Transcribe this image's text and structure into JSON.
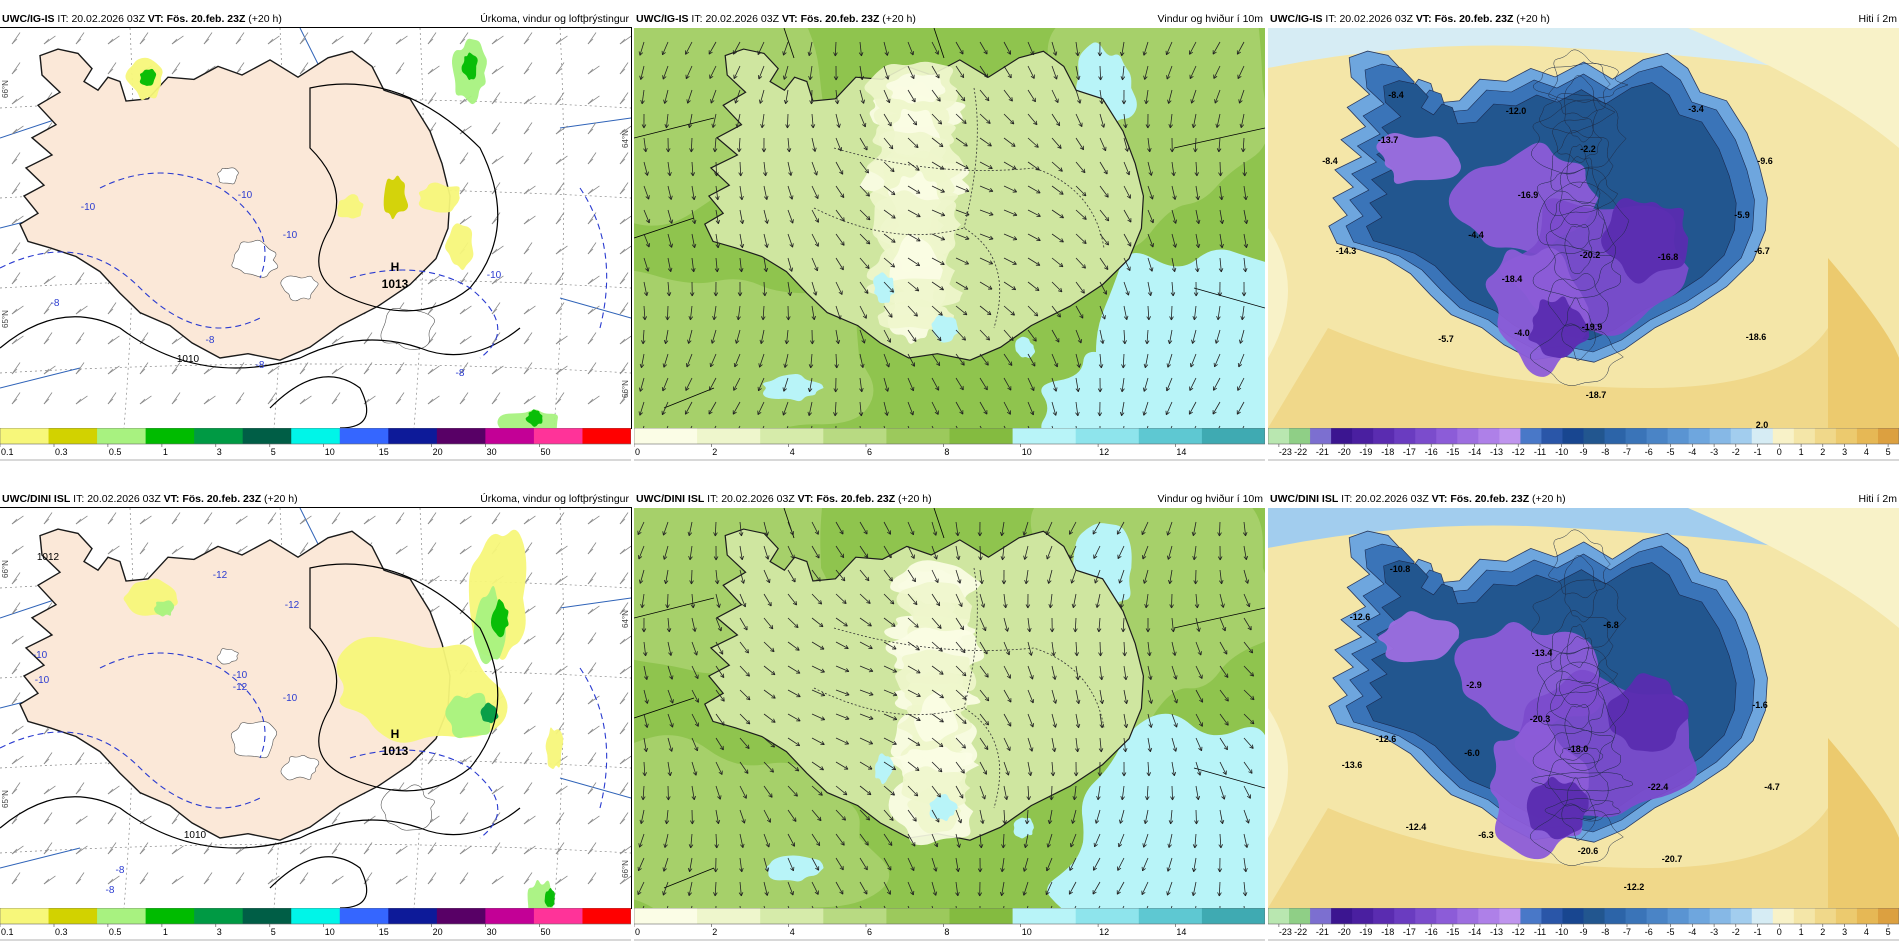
{
  "panels": [
    {
      "model": "UWC/IG-IS",
      "it_label": "IT:",
      "it": "20.02.2026 03Z",
      "vt_label": "VT:",
      "vt": "Fös. 20.feb. 23Z",
      "lead": "(+20 h)",
      "title": "Úrkoma, vindur og loftþrýstingur",
      "kind": "precip",
      "labels": [
        {
          "t": "-10",
          "c": "#2a3bd0"
        },
        {
          "t": "-10",
          "c": "#2a3bd0"
        },
        {
          "t": "-10",
          "c": "#2a3bd0"
        },
        {
          "t": "-10",
          "c": "#2a3bd0"
        },
        {
          "t": "-8",
          "c": "#2a3bd0"
        },
        {
          "t": "-8",
          "c": "#2a3bd0"
        },
        {
          "t": "-8",
          "c": "#2a3bd0"
        },
        {
          "t": "-8",
          "c": "#2a3bd0"
        },
        {
          "t": "1010",
          "c": "#000000"
        },
        {
          "t": "H",
          "c": "#000000",
          "b": true
        },
        {
          "t": "1013",
          "c": "#000000",
          "b": true
        }
      ],
      "side_labels": [
        "66°N",
        "65°N",
        "64°N",
        "66°N"
      ],
      "colorbar": {
        "colors": [
          "#f7f77a",
          "#d2d200",
          "#a8f280",
          "#00bb00",
          "#009a44",
          "#005e46",
          "#00f5e8",
          "#3566ff",
          "#0d1a99",
          "#580066",
          "#c30096",
          "#ff3399",
          "#ff0000"
        ],
        "ticks": [
          "0.1",
          "0.3",
          "0.5",
          "1",
          "3",
          "5",
          "10",
          "15",
          "20",
          "30",
          "50"
        ]
      }
    },
    {
      "model": "UWC/IG-IS",
      "it_label": "IT:",
      "it": "20.02.2026 03Z",
      "vt_label": "VT:",
      "vt": "Fös. 20.feb. 23Z",
      "lead": "(+20 h)",
      "title": "Vindur og hviður í 10m",
      "kind": "wind",
      "colorbar": {
        "colors": [
          "#fbfde6",
          "#eef6cc",
          "#d6ebaa",
          "#b8da82",
          "#9cc95c",
          "#84bb40",
          "#b8f4f8",
          "#8ee4ec",
          "#5ec8d2",
          "#3faab2"
        ],
        "ticks": [
          "0",
          "2",
          "4",
          "6",
          "8",
          "10",
          "12",
          "14"
        ]
      }
    },
    {
      "model": "UWC/IG-IS",
      "it_label": "IT:",
      "it": "20.02.2026 03Z",
      "vt_label": "VT:",
      "vt": "Fös. 20.feb. 23Z",
      "lead": "(+20 h)",
      "title": "Hiti í 2m",
      "kind": "temp",
      "labels": [
        {
          "t": "-8.4"
        },
        {
          "t": "-13.7"
        },
        {
          "t": "-8.4"
        },
        {
          "t": "-12.0"
        },
        {
          "t": "-3.4"
        },
        {
          "t": "-2.2"
        },
        {
          "t": "-9.6"
        },
        {
          "t": "-16.9"
        },
        {
          "t": "-5.9"
        },
        {
          "t": "-4.4"
        },
        {
          "t": "-14.3"
        },
        {
          "t": "-20.2"
        },
        {
          "t": "-16.8"
        },
        {
          "t": "-6.7"
        },
        {
          "t": "-18.4"
        },
        {
          "t": "-5.7"
        },
        {
          "t": "-4.0"
        },
        {
          "t": "-19.9"
        },
        {
          "t": "-18.6"
        },
        {
          "t": "-18.7"
        },
        {
          "t": "2.0"
        }
      ],
      "colorbar": {
        "colors": [
          "#b9e7b0",
          "#8fcf86",
          "#7c6fd0",
          "#3b1590",
          "#4a1fa0",
          "#5a2cb0",
          "#6a3cc0",
          "#7b4ccc",
          "#8c5cd8",
          "#9d6ee0",
          "#ae80e8",
          "#bf95ee",
          "#4978c8",
          "#2a56a8",
          "#184690",
          "#22568f",
          "#2c64a8",
          "#3a74b8",
          "#4a84c6",
          "#5a94d2",
          "#6ea6de",
          "#86b8e6",
          "#a2cdee",
          "#d6ecf4",
          "#f8f2c8",
          "#f4e6a8",
          "#f0d88a",
          "#ecca6e",
          "#e6b855",
          "#dca040"
        ],
        "ticks": [
          "-23",
          "-22",
          "-21",
          "-20",
          "-19",
          "-18",
          "-17",
          "-16",
          "-15",
          "-14",
          "-13",
          "-12",
          "-11",
          "-10",
          "-9",
          "-8",
          "-7",
          "-6",
          "-5",
          "-4",
          "-3",
          "-2",
          "-1",
          "0",
          "1",
          "2",
          "3",
          "4",
          "5"
        ]
      }
    },
    {
      "model": "UWC/DINI ISL",
      "it_label": "IT:",
      "it": "20.02.2026 03Z",
      "vt_label": "VT:",
      "vt": "Fös. 20.feb. 23Z",
      "lead": "(+20 h)",
      "title": "Úrkoma, vindur og loftþrýstingur",
      "kind": "precip",
      "labels": [
        {
          "t": "1012",
          "c": "#000000"
        },
        {
          "t": "-12",
          "c": "#2a3bd0"
        },
        {
          "t": "-12",
          "c": "#2a3bd0"
        },
        {
          "t": "-10",
          "c": "#2a3bd0"
        },
        {
          "t": "-10",
          "c": "#2a3bd0"
        },
        {
          "t": "-10",
          "c": "#2a3bd0"
        },
        {
          "t": "-12",
          "c": "#2a3bd0"
        },
        {
          "t": "-10",
          "c": "#2a3bd0"
        },
        {
          "t": "1010",
          "c": "#000000"
        },
        {
          "t": "-8",
          "c": "#2a3bd0"
        },
        {
          "t": "-8",
          "c": "#2a3bd0"
        },
        {
          "t": "H",
          "c": "#000000",
          "b": true
        },
        {
          "t": "1013",
          "c": "#000000",
          "b": true
        }
      ],
      "side_labels": [
        "66°N",
        "65°N",
        "64°N",
        "66°N"
      ],
      "colorbar": {
        "colors": [
          "#f7f77a",
          "#d2d200",
          "#a8f280",
          "#00bb00",
          "#009a44",
          "#005e46",
          "#00f5e8",
          "#3566ff",
          "#0d1a99",
          "#580066",
          "#c30096",
          "#ff3399",
          "#ff0000"
        ],
        "ticks": [
          "0.1",
          "0.3",
          "0.5",
          "1",
          "3",
          "5",
          "10",
          "15",
          "20",
          "30",
          "50"
        ]
      }
    },
    {
      "model": "UWC/DINI ISL",
      "it_label": "IT:",
      "it": "20.02.2026 03Z",
      "vt_label": "VT:",
      "vt": "Fös. 20.feb. 23Z",
      "lead": "(+20 h)",
      "title": "Vindur og hviður í 10m",
      "kind": "wind",
      "colorbar": {
        "colors": [
          "#fbfde6",
          "#eef6cc",
          "#d6ebaa",
          "#b8da82",
          "#9cc95c",
          "#84bb40",
          "#b8f4f8",
          "#8ee4ec",
          "#5ec8d2",
          "#3faab2"
        ],
        "ticks": [
          "0",
          "2",
          "4",
          "6",
          "8",
          "10",
          "12",
          "14"
        ]
      }
    },
    {
      "model": "UWC/DINI ISL",
      "it_label": "IT:",
      "it": "20.02.2026 03Z",
      "vt_label": "VT:",
      "vt": "Fös. 20.feb. 23Z",
      "lead": "(+20 h)",
      "title": "Hiti í 2m",
      "kind": "temp",
      "labels": [
        {
          "t": "-10.8"
        },
        {
          "t": "-12.6"
        },
        {
          "t": "-13.4"
        },
        {
          "t": "-6.8"
        },
        {
          "t": "-2.9"
        },
        {
          "t": "-20.3"
        },
        {
          "t": "-1.6"
        },
        {
          "t": "-12.6"
        },
        {
          "t": "-13.6"
        },
        {
          "t": "-6.0"
        },
        {
          "t": "-18.0"
        },
        {
          "t": "-22.4"
        },
        {
          "t": "-4.7"
        },
        {
          "t": "-12.4"
        },
        {
          "t": "-6.3"
        },
        {
          "t": "-20.6"
        },
        {
          "t": "-20.7"
        },
        {
          "t": "-12.2"
        },
        {
          "t": "-18.6"
        },
        {
          "t": "1.6"
        }
      ],
      "colorbar": {
        "colors": [
          "#b9e7b0",
          "#8fcf86",
          "#7c6fd0",
          "#3b1590",
          "#4a1fa0",
          "#5a2cb0",
          "#6a3cc0",
          "#7b4ccc",
          "#8c5cd8",
          "#9d6ee0",
          "#ae80e8",
          "#bf95ee",
          "#4978c8",
          "#2a56a8",
          "#184690",
          "#22568f",
          "#2c64a8",
          "#3a74b8",
          "#4a84c6",
          "#5a94d2",
          "#6ea6de",
          "#86b8e6",
          "#a2cdee",
          "#d6ecf4",
          "#f8f2c8",
          "#f4e6a8",
          "#f0d88a",
          "#ecca6e",
          "#e6b855",
          "#dca040"
        ],
        "ticks": [
          "-23",
          "-22",
          "-21",
          "-20",
          "-19",
          "-18",
          "-17",
          "-16",
          "-15",
          "-14",
          "-13",
          "-12",
          "-11",
          "-10",
          "-9",
          "-8",
          "-7",
          "-6",
          "-5",
          "-4",
          "-3",
          "-2",
          "-1",
          "0",
          "1",
          "2",
          "3",
          "4",
          "5"
        ]
      }
    }
  ]
}
